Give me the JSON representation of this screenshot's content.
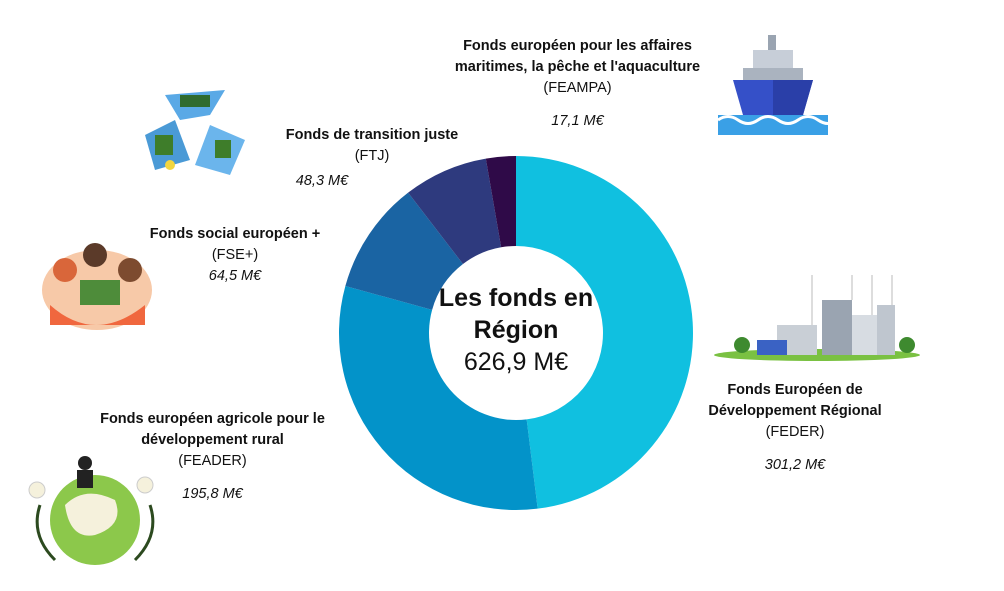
{
  "chart_data": {
    "type": "pie",
    "donut": true,
    "title": "Les fonds en Région",
    "total": "626,9 M€",
    "series": [
      {
        "name": "Fonds Européen de Développement Régional",
        "code": "(FEDER)",
        "value": 301.2,
        "label": "301,2 M€",
        "color": "#10c0e0"
      },
      {
        "name": "Fonds européen agricole pour le développement rural",
        "code": "(FEADER)",
        "value": 195.8,
        "label": "195,8 M€",
        "color": "#0393c9"
      },
      {
        "name": "Fonds social européen +",
        "code": "(FSE+)",
        "value": 64.5,
        "label": "64,5 M€",
        "color": "#1a64a3"
      },
      {
        "name": "Fonds de transition juste",
        "code": "(FTJ)",
        "value": 48.3,
        "label": "48,3 M€",
        "color": "#2e3a7e"
      },
      {
        "name": "Fonds européen pour les affaires maritimes, la pêche et l'aquaculture",
        "code": "(FEAMPA)",
        "value": 17.1,
        "label": "17,1 M€",
        "color": "#2f0a48"
      }
    ]
  },
  "illustrations": [
    "recycle-solar-icon",
    "people-group-icon",
    "globe-plant-icon",
    "ship-icon",
    "city-windmills-icon"
  ]
}
